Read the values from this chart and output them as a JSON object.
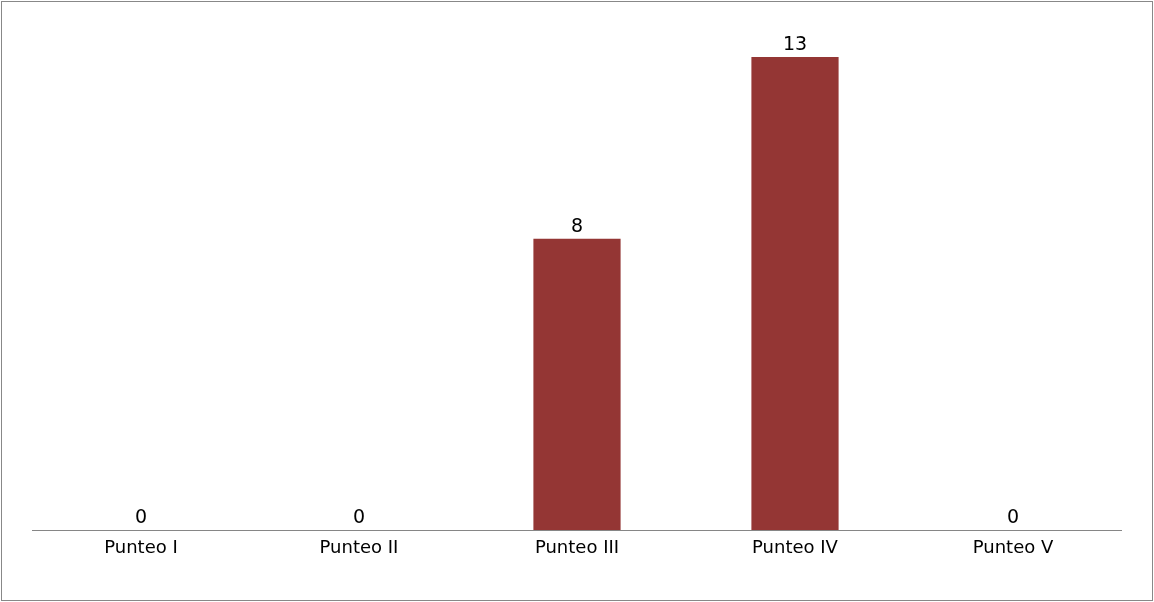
{
  "chart_data": {
    "type": "bar",
    "categories": [
      "Punteo I",
      "Punteo II",
      "Punteo III",
      "Punteo IV",
      "Punteo V"
    ],
    "values": [
      0,
      0,
      8,
      13,
      0
    ],
    "color": "#943634",
    "data_labels": true,
    "grid": false,
    "legend": false,
    "tick_labels": "x"
  }
}
